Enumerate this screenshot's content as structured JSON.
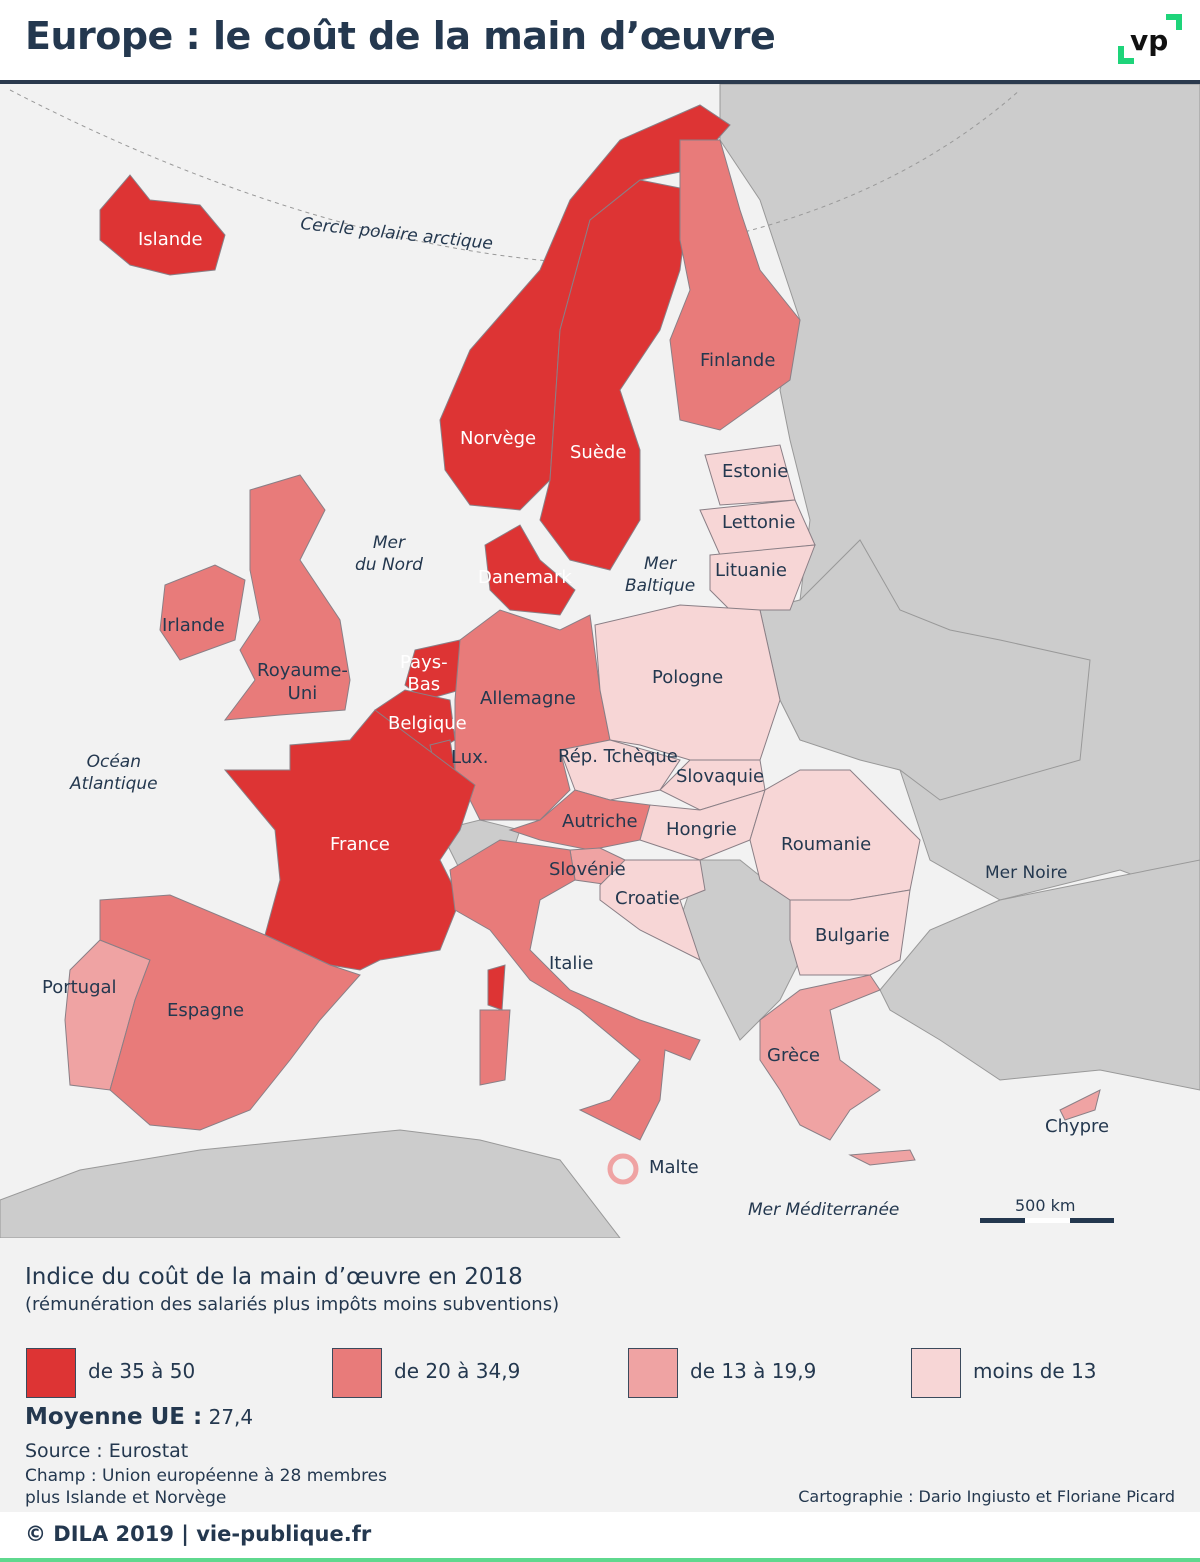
{
  "header": {
    "title": "Europe : le coût de la main d’œuvre",
    "logo_text": "vp",
    "accent_color": "#1ed47a"
  },
  "colors": {
    "c1": "#dd3434",
    "c2": "#e87b7a",
    "c3": "#efa3a3",
    "c4": "#f7d6d6",
    "other_land": "#cccccc",
    "sea": "#f2f2f2",
    "text": "#24384f"
  },
  "map": {
    "polar_circle": "Cercle polaire arctique",
    "seas": {
      "nord": "Mer\ndu Nord",
      "baltique": "Mer\nBaltique",
      "atlantique": "Océan\nAtlantique",
      "noire": "Mer Noire",
      "mediterranee": "Mer Méditerranée"
    },
    "scale": "500 km",
    "countries": [
      {
        "name": "Islande",
        "category": "c1"
      },
      {
        "name": "Norvège",
        "category": "c1"
      },
      {
        "name": "Suède",
        "category": "c1"
      },
      {
        "name": "Finlande",
        "category": "c2"
      },
      {
        "name": "Estonie",
        "category": "c4"
      },
      {
        "name": "Lettonie",
        "category": "c4"
      },
      {
        "name": "Lituanie",
        "category": "c4"
      },
      {
        "name": "Danemark",
        "category": "c1"
      },
      {
        "name": "Irlande",
        "category": "c2"
      },
      {
        "name": "Royaume-\nUni",
        "category": "c2"
      },
      {
        "name": "Pays-\nBas",
        "category": "c1"
      },
      {
        "name": "Belgique",
        "category": "c1"
      },
      {
        "name": "Lux.",
        "category": "c1"
      },
      {
        "name": "Allemagne",
        "category": "c2"
      },
      {
        "name": "Pologne",
        "category": "c4"
      },
      {
        "name": "Rép. Tchèque",
        "category": "c4"
      },
      {
        "name": "Slovaquie",
        "category": "c4"
      },
      {
        "name": "Autriche",
        "category": "c2"
      },
      {
        "name": "Hongrie",
        "category": "c4"
      },
      {
        "name": "Roumanie",
        "category": "c4"
      },
      {
        "name": "France",
        "category": "c1"
      },
      {
        "name": "Slovénie",
        "category": "c3"
      },
      {
        "name": "Croatie",
        "category": "c4"
      },
      {
        "name": "Bulgarie",
        "category": "c4"
      },
      {
        "name": "Italie",
        "category": "c2"
      },
      {
        "name": "Portugal",
        "category": "c3"
      },
      {
        "name": "Espagne",
        "category": "c2"
      },
      {
        "name": "Grèce",
        "category": "c3"
      },
      {
        "name": "Chypre",
        "category": "c3"
      },
      {
        "name": "Malte",
        "category": "c3"
      }
    ]
  },
  "legend": {
    "title": "Indice du coût de la main d’œuvre en 2018",
    "subtitle": "(rémunération des salariés plus impôts moins subventions)",
    "items": [
      {
        "label": "de 35 à 50",
        "color": "#dd3434"
      },
      {
        "label": "de 20 à 34,9",
        "color": "#e87b7a"
      },
      {
        "label": "de 13 à 19,9",
        "color": "#efa3a3"
      },
      {
        "label": "moins de 13",
        "color": "#f7d6d6"
      }
    ],
    "average_label": "Moyenne UE :",
    "average_value": "27,4",
    "source": "Source : Eurostat",
    "champ_line1": "Champ : Union européenne à 28 membres",
    "champ_line2": "plus Islande et Norvège",
    "cartographie": "Cartographie : Dario Ingiusto et Floriane Picard"
  },
  "footer": {
    "copyright": "© DILA 2019 | vie-publique.fr"
  }
}
